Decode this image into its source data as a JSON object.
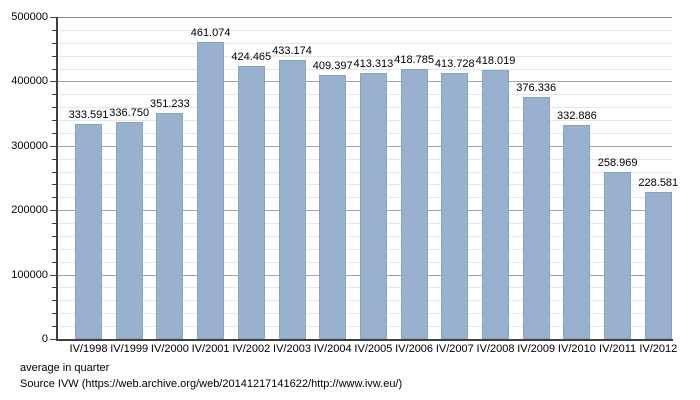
{
  "chart_data": {
    "type": "bar",
    "title": "",
    "xlabel": "",
    "ylabel": "",
    "categories": [
      "IV/1998",
      "IV/1999",
      "IV/2000",
      "IV/2001",
      "IV/2002",
      "IV/2003",
      "IV/2004",
      "IV/2005",
      "IV/2006",
      "IV/2007",
      "IV/2008",
      "IV/2009",
      "IV/2010",
      "IV/2011",
      "IV/2012"
    ],
    "values": [
      333591,
      336750,
      351233,
      461074,
      424465,
      433174,
      409397,
      413313,
      418785,
      413728,
      418019,
      376336,
      332886,
      258969,
      228581
    ],
    "value_labels": [
      "333.591",
      "336.750",
      "351.233",
      "461.074",
      "424.465",
      "433.174",
      "409.397",
      "413.313",
      "418.785",
      "413.728",
      "418.019",
      "376.336",
      "332.886",
      "258.969",
      "228.581"
    ],
    "ylim": [
      0,
      500000
    ],
    "y_major_step": 100000,
    "y_minor_step": 20000,
    "y_tick_labels": [
      "0",
      "100000",
      "200000",
      "300000",
      "400000",
      "500000"
    ],
    "grid": "horizontal, minor and major lines",
    "legend": "none"
  },
  "footer": {
    "note": "average in quarter",
    "source": "Source IVW (https://web.archive.org/web/20141217141622/http://www.ivw.eu/)"
  },
  "colors": {
    "bar": "#97B1CE",
    "bar_border": "#87A3C2",
    "axis": "#3F3F3F",
    "grid_major": "#A3A3A3",
    "grid_minor": "#E7E7E7",
    "frame_top": "#8A8A8A",
    "text": "#000000",
    "background": "#FFFFFF"
  }
}
